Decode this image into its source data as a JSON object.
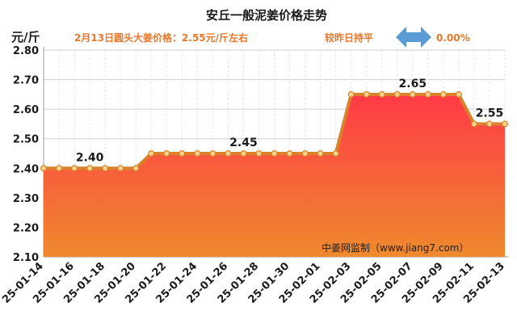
{
  "title": "安丘一般泥姜价格走势",
  "unit_label": "元/斤",
  "price_note": "2月13日圆头大姜价格：2.55元/斤左右",
  "change_label": "较昨日持平",
  "change_value": "0.00%",
  "watermark": "中姜网监制（www.jiang7.com）",
  "colors": {
    "title": "#1a1a1a",
    "accent": "#e8772a",
    "arrow": "#5b9bd5",
    "line": "#d9822b",
    "area_top": "#ff3a46",
    "area_bottom": "#ef8a2e",
    "grid": "#cfcfcf"
  },
  "chart_data": {
    "type": "area",
    "title": "安丘一般泥姜价格走势",
    "ylabel": "元/斤",
    "ylim": [
      2.1,
      2.8
    ],
    "yticks": [
      "2.10",
      "2.20",
      "2.30",
      "2.40",
      "2.50",
      "2.60",
      "2.70",
      "2.80"
    ],
    "x": [
      "25-01-14",
      "25-01-15",
      "25-01-16",
      "25-01-17",
      "25-01-18",
      "25-01-19",
      "25-01-20",
      "25-01-21",
      "25-01-22",
      "25-01-23",
      "25-01-24",
      "25-01-25",
      "25-01-26",
      "25-01-27",
      "25-01-28",
      "25-01-29",
      "25-01-30",
      "25-01-31",
      "25-02-01",
      "25-02-02",
      "25-02-03",
      "25-02-04",
      "25-02-05",
      "25-02-06",
      "25-02-07",
      "25-02-08",
      "25-02-09",
      "25-02-10",
      "25-02-11",
      "25-02-12",
      "25-02-13"
    ],
    "x_tick_labels": [
      "25-01-14",
      "25-01-16",
      "25-01-18",
      "25-01-20",
      "25-01-22",
      "25-01-24",
      "25-01-26",
      "25-01-28",
      "25-01-30",
      "25-02-01",
      "25-02-03",
      "25-02-05",
      "25-02-07",
      "25-02-09",
      "25-02-11",
      "25-02-13"
    ],
    "series": [
      {
        "values": [
          2.4,
          2.4,
          2.4,
          2.4,
          2.4,
          2.4,
          2.4,
          2.45,
          2.45,
          2.45,
          2.45,
          2.45,
          2.45,
          2.45,
          2.45,
          2.45,
          2.45,
          2.45,
          2.45,
          2.45,
          2.65,
          2.65,
          2.65,
          2.65,
          2.65,
          2.65,
          2.65,
          2.65,
          2.55,
          2.55,
          2.55
        ]
      }
    ],
    "data_labels": [
      {
        "index": 3,
        "text": "2.40"
      },
      {
        "index": 13,
        "text": "2.45"
      },
      {
        "index": 24,
        "text": "2.65"
      },
      {
        "index": 29,
        "text": "2.55"
      }
    ],
    "grid": true
  }
}
